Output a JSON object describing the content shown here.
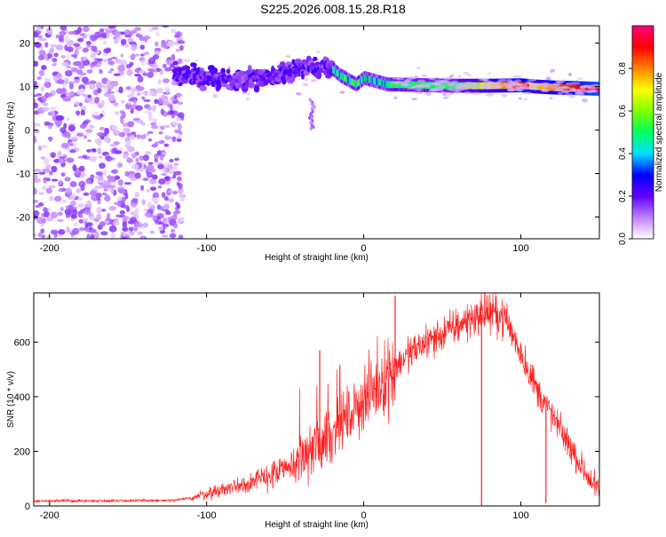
{
  "title": "S225.2026.008.15.28.R18",
  "chart_data": [
    {
      "type": "heatmap",
      "xlabel": "Height of straight line (km)",
      "ylabel": "Frequency (Hz)",
      "xlim": [
        -210,
        150
      ],
      "ylim": [
        -25,
        24
      ],
      "xticks": [
        -200,
        -100,
        0,
        100
      ],
      "yticks": [
        20,
        10,
        0,
        -10,
        -20
      ],
      "colorbar": {
        "label": "Normalized spectral amplitude",
        "range": [
          0,
          1
        ],
        "ticks": [
          "0.0",
          "0.2",
          "0.4",
          "0.6",
          "0.8"
        ],
        "colors": [
          "#ffffff",
          "#c080ff",
          "#6000ff",
          "#0000ff",
          "#00e0ff",
          "#00ff60",
          "#80ff00",
          "#ffff00",
          "#ff8000",
          "#ff0000",
          "#ff0080"
        ]
      },
      "ridge": {
        "x": [
          -120,
          -100,
          -80,
          -60,
          -45,
          -35,
          -25,
          -20,
          -15,
          -10,
          -5,
          0,
          5,
          10,
          15,
          20,
          40,
          60,
          80,
          100,
          110,
          120,
          150
        ],
        "y": [
          13,
          12,
          11.5,
          12,
          13,
          14,
          15,
          14,
          12.5,
          11.5,
          10.5,
          12,
          11.5,
          11,
          10.5,
          10.5,
          10.3,
          10.2,
          10.2,
          10.3,
          10,
          9.8,
          9.5
        ]
      }
    },
    {
      "type": "line",
      "xlabel": "Height of straight line (km)",
      "ylabel": "SNR (10 * v/v)",
      "xlim": [
        -210,
        150
      ],
      "ylim": [
        0,
        780
      ],
      "xticks": [
        -200,
        -100,
        0,
        100
      ],
      "yticks": [
        0,
        200,
        400,
        600
      ],
      "color": "#ff2020",
      "envelope": {
        "x": [
          -210,
          -120,
          -110,
          -90,
          -70,
          -50,
          -40,
          -30,
          -20,
          -10,
          0,
          10,
          20,
          30,
          40,
          50,
          60,
          70,
          80,
          90,
          100,
          110,
          120,
          130,
          140,
          150
        ],
        "y": [
          18,
          20,
          30,
          60,
          90,
          130,
          170,
          220,
          270,
          330,
          390,
          450,
          510,
          560,
          600,
          630,
          660,
          690,
          710,
          690,
          560,
          430,
          330,
          230,
          130,
          50
        ]
      },
      "spikes": [
        {
          "x": 75,
          "y": 0
        },
        {
          "x": 116,
          "y": 10
        },
        {
          "x": 20,
          "y": 770
        },
        {
          "x": -28,
          "y": 570
        },
        {
          "x": 77,
          "y": 780
        }
      ]
    }
  ]
}
